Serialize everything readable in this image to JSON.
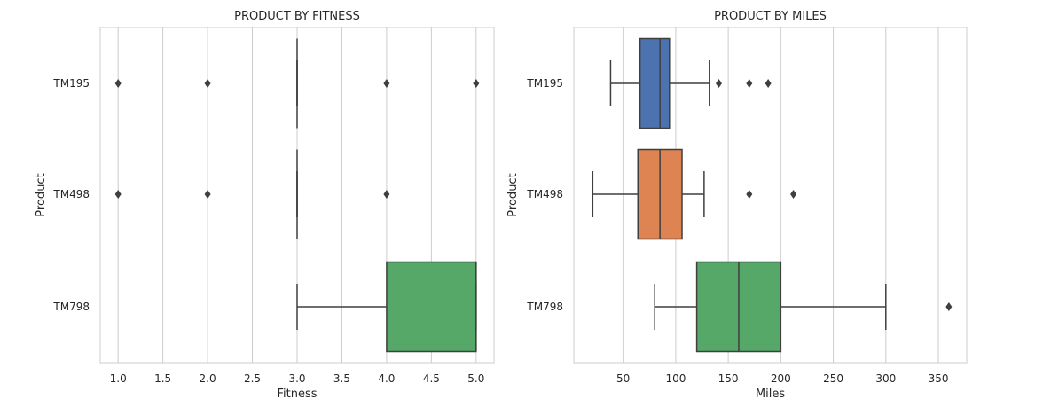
{
  "chart_data": [
    {
      "type": "box",
      "orientation": "horizontal",
      "title": "PRODUCT BY FITNESS",
      "xlabel": "Fitness",
      "ylabel": "Product",
      "xlim": [
        0.8,
        5.2
      ],
      "xticks": [
        1.0,
        1.5,
        2.0,
        2.5,
        3.0,
        3.5,
        4.0,
        4.5,
        5.0
      ],
      "xtick_labels": [
        "1.0",
        "1.5",
        "2.0",
        "2.5",
        "3.0",
        "3.5",
        "4.0",
        "4.5",
        "5.0"
      ],
      "grid": "vertical",
      "categories": [
        "TM195",
        "TM498",
        "TM798"
      ],
      "boxes": [
        {
          "category": "TM195",
          "color": "#4c72b0",
          "whislo": 3,
          "q1": 3,
          "median": 3,
          "q3": 3,
          "whishi": 3,
          "fliers": [
            1,
            2,
            4,
            5
          ]
        },
        {
          "category": "TM498",
          "color": "#dd8452",
          "whislo": 3,
          "q1": 3,
          "median": 3,
          "q3": 3,
          "whishi": 3,
          "fliers": [
            1,
            2,
            4
          ]
        },
        {
          "category": "TM798",
          "color": "#55a868",
          "whislo": 3,
          "q1": 4,
          "median": 5,
          "q3": 5,
          "whishi": 5,
          "fliers": []
        }
      ]
    },
    {
      "type": "box",
      "orientation": "horizontal",
      "title": "PRODUCT BY MILES",
      "xlabel": "Miles",
      "ylabel": "Product",
      "xlim": [
        3,
        377
      ],
      "xticks": [
        50,
        100,
        150,
        200,
        250,
        300,
        350
      ],
      "xtick_labels": [
        "50",
        "100",
        "150",
        "200",
        "250",
        "300",
        "350"
      ],
      "grid": "vertical",
      "categories": [
        "TM195",
        "TM498",
        "TM798"
      ],
      "boxes": [
        {
          "category": "TM195",
          "color": "#4c72b0",
          "whislo": 38,
          "q1": 66,
          "median": 85,
          "q3": 94,
          "whishi": 132,
          "fliers": [
            141,
            170,
            188
          ]
        },
        {
          "category": "TM498",
          "color": "#dd8452",
          "whislo": 21,
          "q1": 64,
          "median": 85,
          "q3": 106,
          "whishi": 127,
          "fliers": [
            170,
            212
          ]
        },
        {
          "category": "TM798",
          "color": "#55a868",
          "whislo": 80,
          "q1": 120,
          "median": 160,
          "q3": 200,
          "whishi": 300,
          "fliers": [
            360
          ]
        }
      ]
    }
  ]
}
